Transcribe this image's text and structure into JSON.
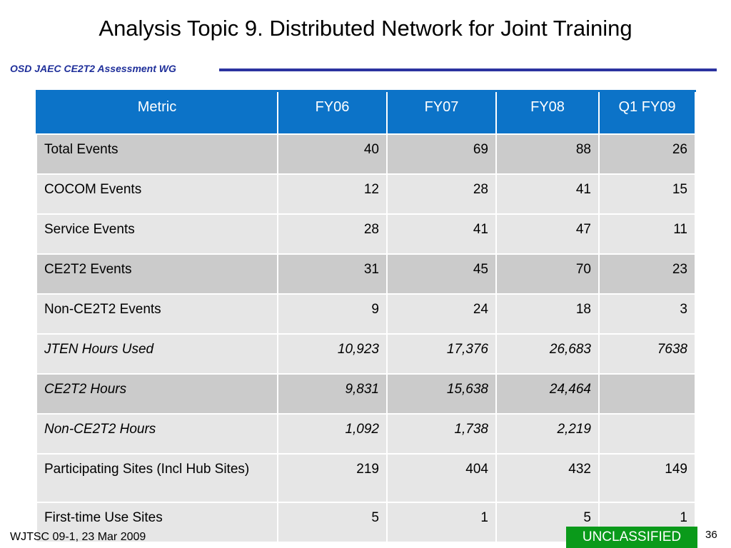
{
  "slide": {
    "title": "Analysis Topic 9. Distributed Network for Joint Training",
    "subheader": "OSD JAEC CE2T2 Assessment WG"
  },
  "table": {
    "headers": [
      "Metric",
      "FY06",
      "FY07",
      "FY08",
      "Q1 FY09"
    ],
    "rows": [
      {
        "label": "Total Events",
        "values": [
          "40",
          "69",
          "88",
          "26"
        ]
      },
      {
        "label": "COCOM Events",
        "values": [
          "12",
          "28",
          "41",
          "15"
        ]
      },
      {
        "label": "Service Events",
        "values": [
          "28",
          "41",
          "47",
          "11"
        ]
      },
      {
        "label": "CE2T2 Events",
        "values": [
          "31",
          "45",
          "70",
          "23"
        ]
      },
      {
        "label": "Non-CE2T2 Events",
        "values": [
          "9",
          "24",
          "18",
          "3"
        ]
      },
      {
        "label": "JTEN Hours Used",
        "values": [
          "10,923",
          "17,376",
          "26,683",
          "7638"
        ]
      },
      {
        "label": "CE2T2 Hours",
        "values": [
          "9,831",
          "15,638",
          "24,464",
          ""
        ]
      },
      {
        "label": "Non-CE2T2 Hours",
        "values": [
          "1,092",
          "1,738",
          "2,219",
          ""
        ]
      },
      {
        "label": "Participating Sites (Incl Hub Sites)",
        "values": [
          "219",
          "404",
          "432",
          "149"
        ]
      },
      {
        "label": "First-time Use Sites",
        "values": [
          "5",
          "1",
          "5",
          "1"
        ]
      }
    ]
  },
  "footer": {
    "source": "WJTSC 09-1, 23 Mar 2009",
    "classification": "UNCLASSIFIED",
    "page_number": "36"
  },
  "colors": {
    "header_blue": "#0c73c8",
    "accent_navy": "#2b33a0",
    "classification_green": "#0a9a1a"
  }
}
